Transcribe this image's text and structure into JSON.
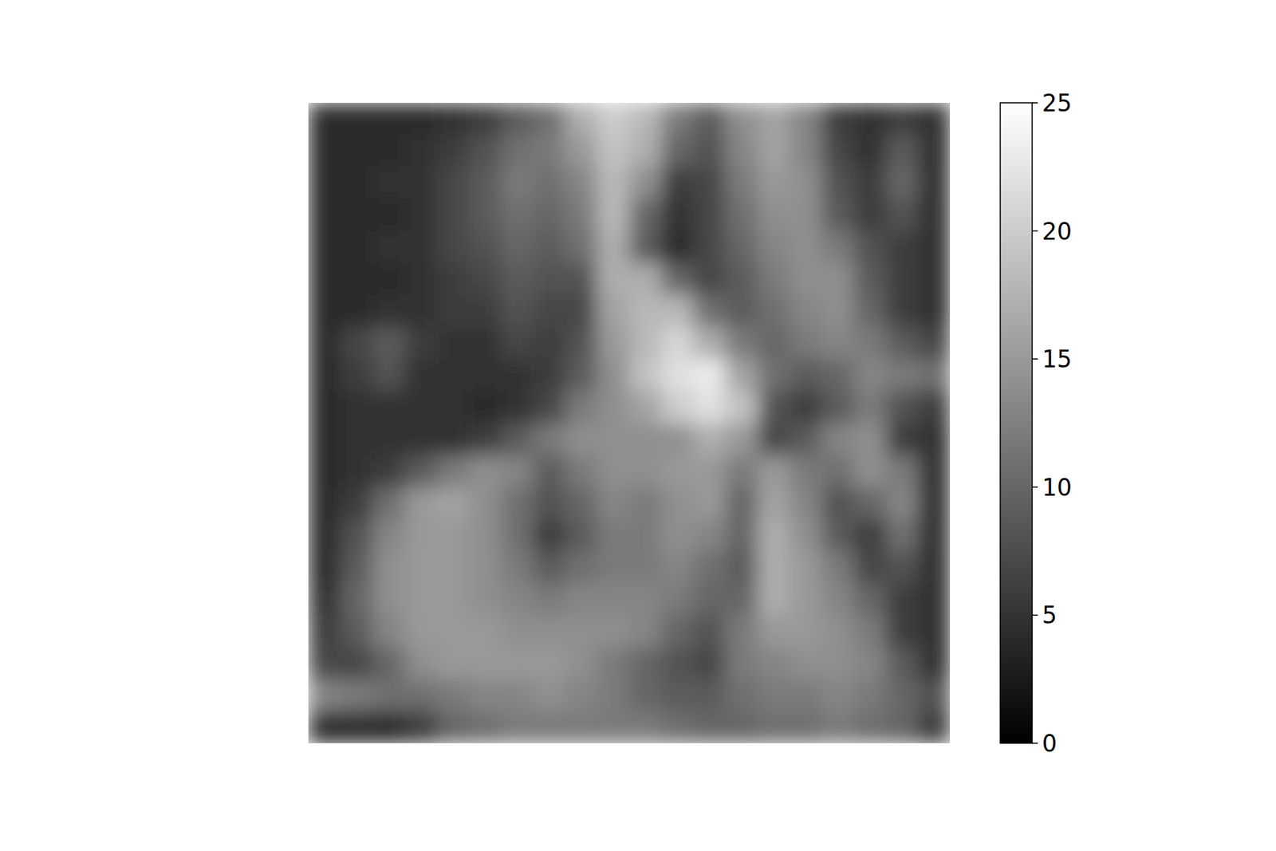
{
  "chart_data": {
    "type": "heatmap",
    "color": "gray",
    "tick_labels": false,
    "clim": [
      0,
      25
    ],
    "cticks": [
      0,
      5,
      10,
      15,
      20,
      25
    ],
    "cells": [
      [
        4,
        4,
        4,
        4,
        5,
        6,
        9,
        11,
        17,
        20,
        18,
        12,
        9,
        14,
        16,
        13,
        6,
        5,
        6,
        5
      ],
      [
        4,
        4,
        4,
        5,
        6,
        8,
        11,
        12,
        15,
        19,
        17,
        10,
        8,
        13,
        16,
        13,
        7,
        5,
        9,
        5
      ],
      [
        4,
        4,
        5,
        5,
        7,
        9,
        12,
        11,
        13,
        18,
        14,
        6,
        7,
        12,
        15,
        14,
        8,
        6,
        10,
        5
      ],
      [
        4,
        4,
        4,
        5,
        7,
        9,
        11,
        10,
        12,
        18,
        10,
        5,
        7,
        11,
        14,
        14,
        9,
        6,
        8,
        5
      ],
      [
        4,
        4,
        5,
        5,
        7,
        8,
        10,
        9,
        11,
        17,
        9,
        4,
        7,
        10,
        13,
        14,
        12,
        8,
        6,
        5
      ],
      [
        4,
        4,
        4,
        5,
        6,
        7,
        9,
        8,
        8,
        17,
        17,
        10,
        7,
        9,
        12,
        14,
        14,
        9,
        6,
        5
      ],
      [
        4,
        4,
        5,
        5,
        6,
        6,
        8,
        7,
        7,
        16,
        18,
        18,
        11,
        9,
        11,
        13,
        14,
        10,
        6,
        5
      ],
      [
        4,
        7,
        9,
        6,
        5,
        5,
        7,
        6,
        8,
        15,
        18,
        21,
        17,
        12,
        10,
        12,
        13,
        12,
        9,
        7
      ],
      [
        4,
        6,
        8,
        5,
        5,
        5,
        5,
        6,
        9,
        14,
        19,
        22,
        23,
        16,
        11,
        9,
        10,
        13,
        12,
        11
      ],
      [
        4,
        5,
        5,
        5,
        5,
        4,
        5,
        7,
        12,
        14,
        16,
        20,
        22,
        19,
        8,
        6,
        9,
        12,
        8,
        6
      ],
      [
        4,
        5,
        5,
        5,
        5,
        6,
        9,
        12,
        14,
        14,
        14,
        14,
        17,
        15,
        7,
        9,
        13,
        14,
        6,
        5
      ],
      [
        4,
        5,
        6,
        9,
        12,
        14,
        13,
        9,
        12,
        14,
        14,
        15,
        15,
        12,
        15,
        12,
        11,
        14,
        12,
        5
      ],
      [
        4,
        6,
        11,
        15,
        16,
        14,
        11,
        8,
        10,
        13,
        12,
        14,
        15,
        10,
        16,
        13,
        8,
        10,
        13,
        5
      ],
      [
        4,
        8,
        13,
        15,
        15,
        14,
        11,
        6,
        9,
        12,
        12,
        14,
        13,
        10,
        17,
        14,
        9,
        6,
        11,
        5
      ],
      [
        4,
        9,
        14,
        15,
        15,
        14,
        12,
        9,
        11,
        12,
        12,
        13,
        11,
        9,
        17,
        15,
        12,
        7,
        8,
        5
      ],
      [
        5,
        10,
        14,
        15,
        15,
        14,
        13,
        12,
        13,
        13,
        13,
        12,
        10,
        10,
        17,
        15,
        13,
        10,
        6,
        5
      ],
      [
        6,
        9,
        13,
        15,
        15,
        15,
        14,
        14,
        14,
        14,
        13,
        10,
        8,
        12,
        15,
        15,
        14,
        12,
        6,
        5
      ],
      [
        7,
        7,
        10,
        14,
        15,
        15,
        15,
        15,
        14,
        12,
        10,
        8,
        7,
        12,
        13,
        14,
        14,
        13,
        9,
        5
      ],
      [
        13,
        12,
        11,
        11,
        12,
        13,
        13,
        14,
        13,
        12,
        10,
        9,
        9,
        11,
        12,
        12,
        13,
        12,
        10,
        8
      ],
      [
        4,
        4,
        4,
        6,
        10,
        11,
        12,
        12,
        12,
        12,
        12,
        11,
        10,
        10,
        11,
        11,
        12,
        11,
        10,
        6
      ]
    ]
  }
}
